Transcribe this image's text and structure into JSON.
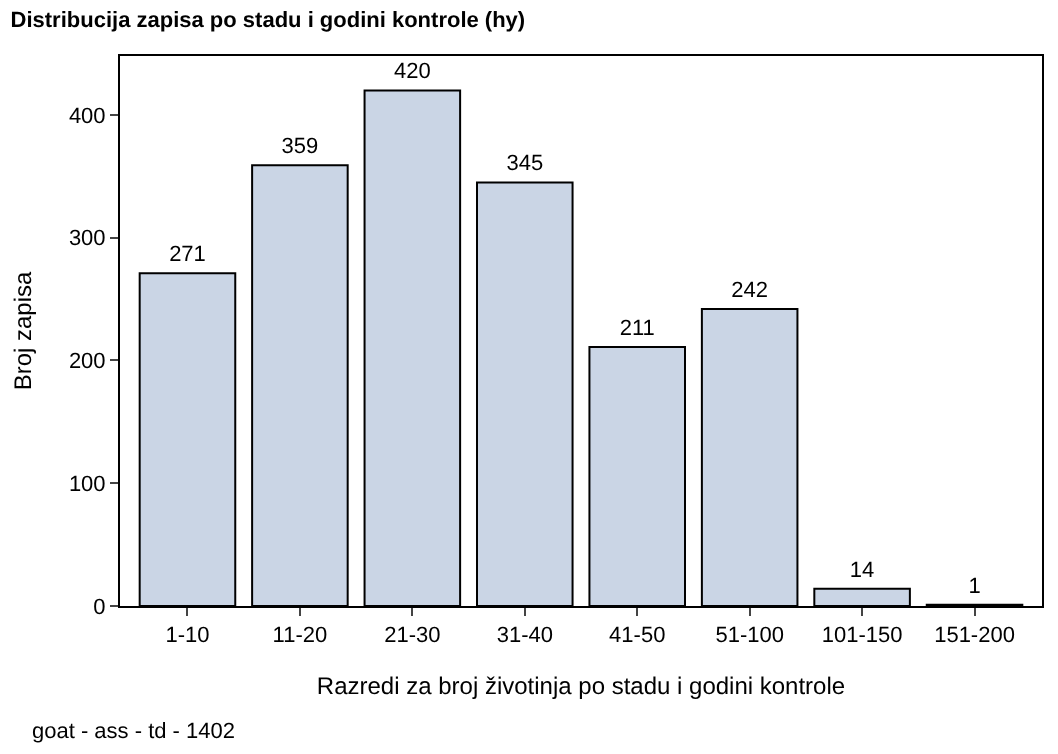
{
  "chart_data": {
    "type": "bar",
    "title": "Distribucija zapisa po stadu i godini kontrole (hy)",
    "xlabel": "Razredi za broj životinja po stadu i godini kontrole",
    "ylabel": "Broj zapisa",
    "categories": [
      "1-10",
      "11-20",
      "21-30",
      "31-40",
      "41-50",
      "51-100",
      "101-150",
      "151-200"
    ],
    "values": [
      271,
      359,
      420,
      345,
      211,
      242,
      14,
      1
    ],
    "color": "#cad5e5",
    "ylim": [
      0,
      448
    ],
    "yticks": [
      0,
      100,
      200,
      300,
      400
    ],
    "data_labels": true,
    "annotations": [
      "goat - ass - td - 1402"
    ]
  }
}
